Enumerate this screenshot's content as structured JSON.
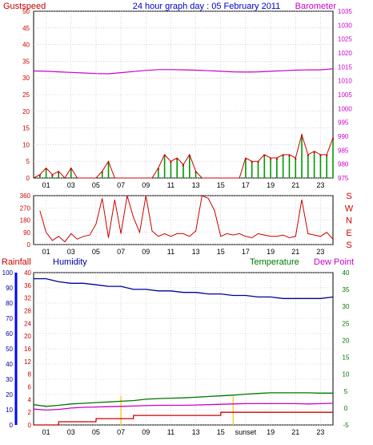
{
  "header": {
    "title": "24 hour graph day : 05 February 2011",
    "left_label": "Gustspeed",
    "right_label": "Barometer"
  },
  "colors": {
    "gust": "#cc0000",
    "barometer": "#cc00cc",
    "wind_avg": "#009900",
    "wind_dir_bar": "#0000cc",
    "direction": "#cc0000",
    "rainfall": "#cc0000",
    "humidity": "#000099",
    "temperature": "#007700",
    "dewpoint": "#cc00cc",
    "sun": "#ffcc33",
    "axis_left_bar": "#0000ff",
    "title": "#0000cc",
    "grid": "#bbbbbb"
  },
  "panel_top": {
    "left_axis_ticks": [
      "0",
      "5",
      "10",
      "15",
      "20",
      "25",
      "30",
      "35",
      "40",
      "45",
      "50"
    ],
    "right_axis_ticks": [
      "975",
      "980",
      "985",
      "990",
      "995",
      "1000",
      "1005",
      "1010",
      "1015",
      "1020",
      "1025",
      "1030",
      "1035"
    ],
    "x_ticks": [
      "01",
      "03",
      "05",
      "07",
      "09",
      "11",
      "13",
      "15",
      "17",
      "19",
      "21",
      "23"
    ]
  },
  "panel_mid": {
    "left_axis_ticks": [
      "0",
      "90",
      "180",
      "270",
      "360"
    ],
    "right_axis_labels": [
      "S",
      "E",
      "N",
      "W",
      "S"
    ],
    "x_ticks": [
      "01",
      "03",
      "05",
      "07",
      "09",
      "11",
      "13",
      "15",
      "17",
      "19",
      "21",
      "23"
    ]
  },
  "panel_bottom": {
    "labels": {
      "rainfall": "Rainfall",
      "humidity": "Humidity",
      "temperature": "Temperature",
      "dewpoint": "Dew Point"
    },
    "humidity_ticks": [
      "0",
      "10",
      "20",
      "30",
      "40",
      "50",
      "60",
      "70",
      "80",
      "90",
      "100"
    ],
    "rain_ticks": [
      "0",
      "2",
      "4",
      "6",
      "8",
      "12",
      "16",
      "20",
      "24",
      "28",
      "32",
      "36",
      "40"
    ],
    "temp_ticks": [
      "-5",
      "0",
      "5",
      "10",
      "15",
      "20",
      "25",
      "30",
      "35",
      "40"
    ],
    "x_ticks": [
      "01",
      "03",
      "05",
      "07",
      "09",
      "11",
      "13",
      "15",
      "sunset",
      "19",
      "21",
      "23"
    ]
  },
  "chart_data": [
    {
      "type": "line",
      "title": "24 hour graph day : 05 February 2011",
      "x_unit": "hour",
      "xlim": [
        0,
        24
      ],
      "series": [
        {
          "name": "Gustspeed",
          "axis": "left",
          "ylim": [
            0,
            50
          ],
          "x": [
            0,
            0.5,
            1,
            1.5,
            2,
            2.5,
            3,
            3.5,
            4,
            4.5,
            5,
            5.5,
            6,
            6.5,
            7,
            7.5,
            8,
            8.5,
            9,
            9.5,
            10,
            10.5,
            11,
            11.5,
            12,
            12.5,
            13,
            13.5,
            14,
            14.5,
            15,
            15.5,
            16,
            16.5,
            17,
            17.5,
            18,
            18.5,
            19,
            19.5,
            20,
            20.5,
            21,
            21.5,
            22,
            22.5,
            23,
            23.5,
            24
          ],
          "y": [
            0,
            1,
            3,
            1,
            2,
            0,
            3,
            0,
            0,
            0,
            0,
            2,
            5,
            0,
            0,
            0,
            0,
            0,
            0,
            0,
            3,
            7,
            5,
            6,
            4,
            7,
            2,
            0,
            0,
            0,
            0,
            0,
            0,
            0,
            6,
            5,
            5,
            7,
            6,
            6,
            7,
            7,
            6,
            13,
            7,
            8,
            7,
            7,
            12
          ]
        },
        {
          "name": "Barometer",
          "axis": "right",
          "ylim": [
            975,
            1035
          ],
          "x": [
            0,
            1,
            2,
            3,
            4,
            5,
            6,
            7,
            8,
            9,
            10,
            11,
            12,
            13,
            14,
            15,
            16,
            17,
            18,
            19,
            20,
            21,
            22,
            23,
            24
          ],
          "y": [
            1013.5,
            1013.4,
            1013.2,
            1013.0,
            1012.8,
            1012.6,
            1012.5,
            1012.9,
            1013.3,
            1013.7,
            1014.0,
            1014.0,
            1013.9,
            1013.8,
            1013.6,
            1013.4,
            1013.2,
            1013.1,
            1013.2,
            1013.4,
            1013.6,
            1013.8,
            1013.9,
            1013.9,
            1014.3
          ]
        }
      ]
    },
    {
      "type": "line",
      "title": "",
      "x_unit": "hour",
      "xlim": [
        0,
        24
      ],
      "ylim": [
        0,
        360
      ],
      "series": [
        {
          "name": "Wind direction",
          "x": [
            0.5,
            1,
            1.5,
            2,
            2.5,
            3,
            3.5,
            4,
            4.5,
            5,
            5.5,
            6,
            6.5,
            7,
            7.5,
            8,
            8.5,
            9,
            9.5,
            10,
            10.5,
            11,
            11.5,
            12,
            12.5,
            13,
            13.5,
            14,
            14.5,
            15,
            15.5,
            16,
            16.5,
            17,
            17.5,
            18,
            18.5,
            19,
            19.5,
            20,
            20.5,
            21,
            21.5,
            22,
            22.5,
            23,
            23.5,
            24
          ],
          "y": [
            250,
            90,
            30,
            60,
            20,
            80,
            40,
            60,
            70,
            150,
            340,
            50,
            330,
            80,
            360,
            200,
            90,
            360,
            100,
            60,
            80,
            60,
            80,
            80,
            60,
            100,
            360,
            340,
            250,
            60,
            80,
            70,
            80,
            60,
            50,
            80,
            70,
            60,
            60,
            70,
            50,
            60,
            330,
            80,
            70,
            60,
            90,
            40
          ]
        }
      ]
    },
    {
      "type": "line",
      "title": "",
      "x_unit": "hour",
      "xlim": [
        0,
        24
      ],
      "series": [
        {
          "name": "Humidity",
          "axis": "humidity",
          "ylim": [
            0,
            100
          ],
          "x": [
            0,
            1,
            2,
            3,
            4,
            5,
            6,
            7,
            8,
            9,
            10,
            11,
            12,
            13,
            14,
            15,
            16,
            17,
            18,
            19,
            20,
            21,
            22,
            23,
            24
          ],
          "y": [
            96,
            96,
            94,
            93,
            93,
            92,
            91,
            91,
            89,
            89,
            88,
            88,
            87,
            87,
            86,
            86,
            85,
            85,
            84,
            84,
            83,
            83,
            83,
            83,
            84
          ]
        },
        {
          "name": "Temperature",
          "axis": "temp",
          "ylim": [
            -5,
            40
          ],
          "x": [
            0,
            1,
            2,
            3,
            4,
            5,
            6,
            7,
            8,
            9,
            10,
            11,
            12,
            13,
            14,
            15,
            16,
            17,
            18,
            19,
            20,
            21,
            22,
            23,
            24
          ],
          "y": [
            1.0,
            0.5,
            0.8,
            1.2,
            1.4,
            1.6,
            1.8,
            2.0,
            2.2,
            2.6,
            2.8,
            2.9,
            3.0,
            3.2,
            3.4,
            3.6,
            3.8,
            4.1,
            4.3,
            4.5,
            4.5,
            4.5,
            4.5,
            4.4,
            4.4
          ]
        },
        {
          "name": "Dew Point",
          "axis": "temp",
          "ylim": [
            -5,
            40
          ],
          "x": [
            0,
            1,
            2,
            3,
            4,
            5,
            6,
            7,
            8,
            9,
            10,
            11,
            12,
            13,
            14,
            15,
            16,
            17,
            18,
            19,
            20,
            21,
            22,
            23,
            24
          ],
          "y": [
            -0.3,
            -0.6,
            -0.4,
            0.0,
            0.2,
            0.3,
            0.4,
            0.5,
            0.6,
            0.7,
            0.8,
            0.8,
            0.8,
            0.9,
            1.0,
            1.1,
            1.2,
            1.3,
            1.3,
            1.3,
            1.3,
            1.3,
            1.2,
            1.3,
            1.4
          ]
        },
        {
          "name": "Rainfall",
          "axis": "rain",
          "ylim": [
            0,
            40
          ],
          "x": [
            0,
            2,
            2.01,
            5,
            5.01,
            8,
            8.01,
            15,
            15.01,
            24
          ],
          "y": [
            0,
            0,
            0.5,
            0.5,
            1.0,
            1.0,
            1.5,
            1.5,
            2.0,
            2.0
          ]
        }
      ]
    }
  ]
}
